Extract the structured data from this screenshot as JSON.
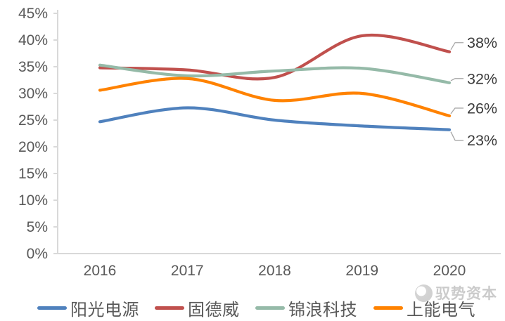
{
  "chart_data": {
    "type": "line",
    "title": "",
    "xlabel": "",
    "ylabel": "",
    "x_labels": [
      "2016",
      "2017",
      "2018",
      "2019",
      "2020"
    ],
    "y_tick_labels": [
      "0%",
      "5%",
      "10%",
      "15%",
      "20%",
      "25%",
      "30%",
      "35%",
      "40%",
      "45%"
    ],
    "ylim": [
      0,
      45
    ],
    "ytick_step": 5,
    "grid": false,
    "legend_position": "bottom",
    "series": [
      {
        "name": "阳光电源",
        "color": "#4F81BD",
        "values": [
          24.7,
          27.3,
          25.0,
          23.9,
          23.2
        ],
        "end_label": "23%"
      },
      {
        "name": "固德威",
        "color": "#C0504D",
        "values": [
          34.8,
          34.4,
          33.0,
          40.8,
          37.8
        ],
        "end_label": "38%"
      },
      {
        "name": "锦浪科技",
        "color": "#95BAA8",
        "values": [
          35.3,
          33.3,
          34.2,
          34.7,
          32.0
        ],
        "end_label": "32%"
      },
      {
        "name": "上能电气",
        "color": "#FF8200",
        "values": [
          30.6,
          32.8,
          28.7,
          30.0,
          25.8
        ],
        "end_label": "26%"
      }
    ]
  },
  "watermark": {
    "text": "驭势资本"
  },
  "colors": {
    "axis": "#D9D9D9",
    "tick_label": "#595959",
    "end_label": "#3b3b3b",
    "leader_line": "#A6A6A6",
    "background": "#FFFFFF"
  }
}
